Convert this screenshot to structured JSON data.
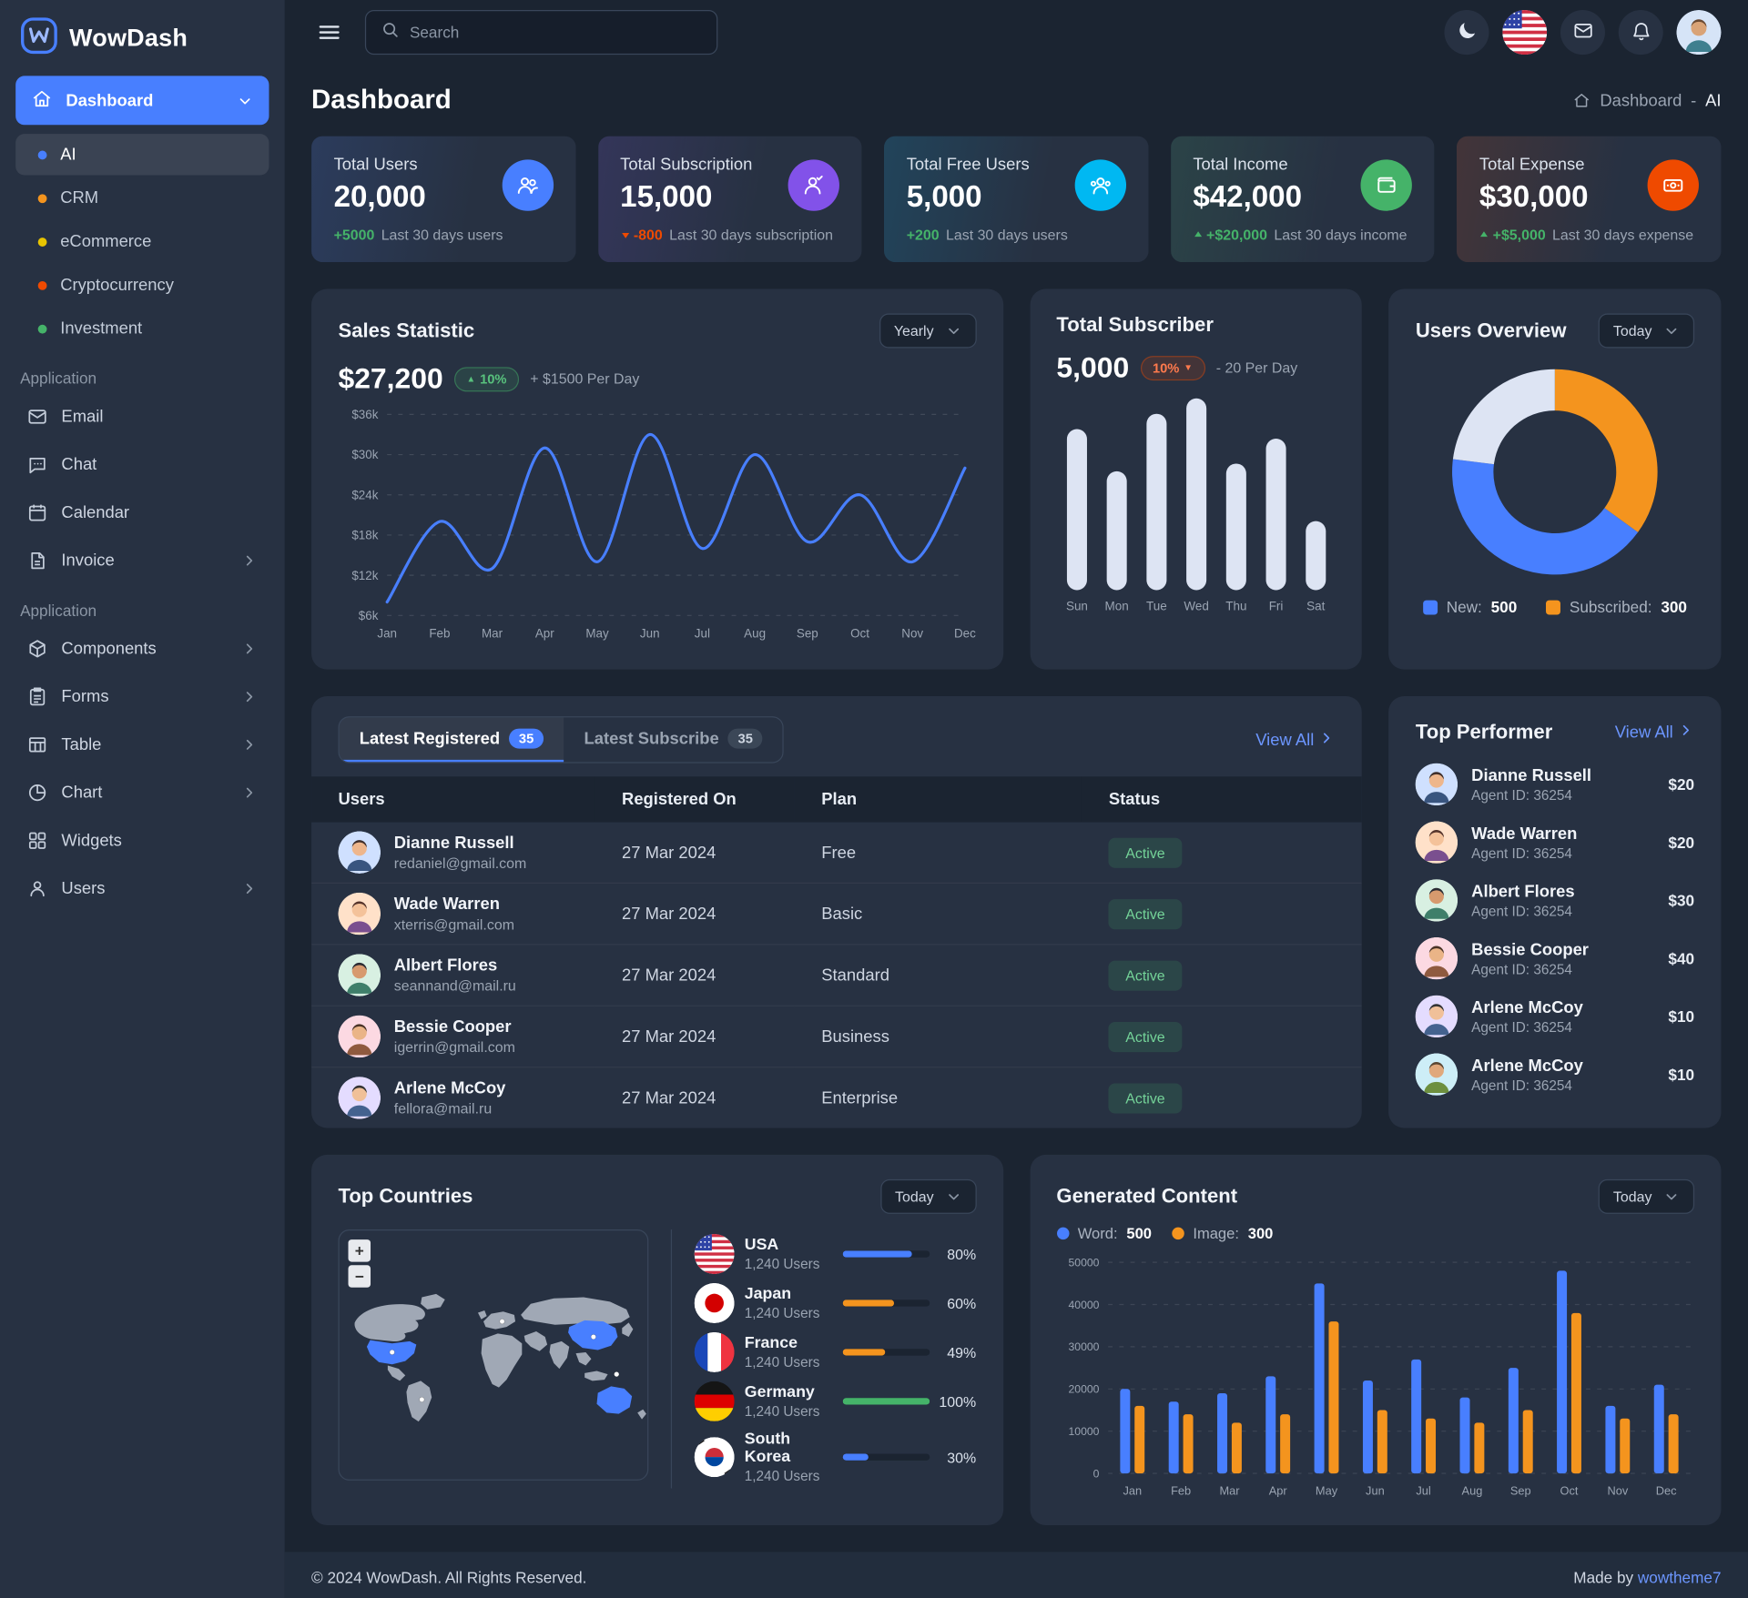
{
  "app": {
    "name": "WowDash",
    "footer_copyright": "© 2024 WowDash. All Rights Reserved.",
    "footer_made_by": "Made by",
    "footer_brand": "wowtheme7"
  },
  "header": {
    "search_placeholder": "Search"
  },
  "sidebar": {
    "dashboard_label": "Dashboard",
    "dashboard_items": [
      {
        "label": "AI",
        "dot": "#487fff",
        "active": true
      },
      {
        "label": "CRM",
        "dot": "#f4941e"
      },
      {
        "label": "eCommerce",
        "dot": "#e8c400"
      },
      {
        "label": "Cryptocurrency",
        "dot": "#ef4a00"
      },
      {
        "label": "Investment",
        "dot": "#45b369"
      }
    ],
    "section1": {
      "title": "Application",
      "items": [
        {
          "label": "Email",
          "icon": "email-icon"
        },
        {
          "label": "Chat",
          "icon": "chat-icon"
        },
        {
          "label": "Calendar",
          "icon": "calendar-icon"
        },
        {
          "label": "Invoice",
          "icon": "invoice-icon",
          "chevron": true
        }
      ]
    },
    "section2": {
      "title": "Application",
      "items": [
        {
          "label": "Components",
          "icon": "components-icon",
          "chevron": true
        },
        {
          "label": "Forms",
          "icon": "forms-icon",
          "chevron": true
        },
        {
          "label": "Table",
          "icon": "table-icon",
          "chevron": true
        },
        {
          "label": "Chart",
          "icon": "chart-icon",
          "chevron": true
        },
        {
          "label": "Widgets",
          "icon": "widgets-icon"
        },
        {
          "label": "Users",
          "icon": "users-icon",
          "chevron": true
        }
      ]
    }
  },
  "page": {
    "title": "Dashboard",
    "breadcrumb_home": "Dashboard",
    "breadcrumb_separator": "-",
    "breadcrumb_current": "AI"
  },
  "stats": [
    {
      "label": "Total Users",
      "value": "20,000",
      "delta": "+5000",
      "delta_color": "#45b369",
      "note": "Last 30 days users",
      "icon": "users-group-icon",
      "icon_bg": "#487fff"
    },
    {
      "label": "Total Subscription",
      "value": "15,000",
      "delta": "-800",
      "delta_color": "#ef4a00",
      "delta_icon": "arrow-down-icon",
      "note": "Last 30 days subscription",
      "icon": "subscription-icon",
      "icon_bg": "#8252e9"
    },
    {
      "label": "Total Free Users",
      "value": "5,000",
      "delta": "+200",
      "delta_color": "#45b369",
      "note": "Last 30 days users",
      "icon": "free-users-icon",
      "icon_bg": "#00b8f2"
    },
    {
      "label": "Total Income",
      "value": "$42,000",
      "delta": "+$20,000",
      "delta_color": "#45b369",
      "delta_icon": "arrow-up-icon",
      "note": "Last 30 days income",
      "icon": "income-icon",
      "icon_bg": "#45b369"
    },
    {
      "label": "Total Expense",
      "value": "$30,000",
      "delta": "+$5,000",
      "delta_color": "#45b369",
      "delta_icon": "arrow-up-icon",
      "note": "Last 30 days expense",
      "icon": "expense-icon",
      "icon_bg": "#ef4a00"
    }
  ],
  "sales": {
    "title": "Sales Statistic",
    "value": "$27,200",
    "badge": "10%",
    "per_day": "+ $1500 Per Day",
    "select_value": "Yearly"
  },
  "subscriber": {
    "title": "Total Subscriber",
    "value": "5,000",
    "badge": "10%",
    "per_day": "- 20 Per Day"
  },
  "users_overview": {
    "title": "Users Overview",
    "select_value": "Today",
    "legend": [
      {
        "label": "New:",
        "value": "500",
        "color": "#487fff"
      },
      {
        "label": "Subscribed:",
        "value": "300",
        "color": "#f4941e"
      }
    ]
  },
  "latest": {
    "tabs": [
      {
        "label": "Latest Registered",
        "badge": "35"
      },
      {
        "label": "Latest Subscribe",
        "badge": "35"
      }
    ],
    "view_all": "View All",
    "columns": [
      "Users",
      "Registered On",
      "Plan",
      "Status"
    ],
    "rows": [
      {
        "name": "Dianne Russell",
        "email": "redaniel@gmail.com",
        "registered": "27 Mar 2024",
        "plan": "Free",
        "status": "Active"
      },
      {
        "name": "Wade Warren",
        "email": "xterris@gmail.com",
        "registered": "27 Mar 2024",
        "plan": "Basic",
        "status": "Active"
      },
      {
        "name": "Albert Flores",
        "email": "seannand@mail.ru",
        "registered": "27 Mar 2024",
        "plan": "Standard",
        "status": "Active"
      },
      {
        "name": "Bessie Cooper",
        "email": "igerrin@gmail.com",
        "registered": "27 Mar 2024",
        "plan": "Business",
        "status": "Active"
      },
      {
        "name": "Arlene McCoy",
        "email": "fellora@mail.ru",
        "registered": "27 Mar 2024",
        "plan": "Enterprise",
        "status": "Active"
      }
    ]
  },
  "top_performer": {
    "title": "Top Performer",
    "view_all": "View All",
    "rows": [
      {
        "name": "Dianne Russell",
        "agent_id": "Agent ID: 36254",
        "amount": "$20"
      },
      {
        "name": "Wade Warren",
        "agent_id": "Agent ID: 36254",
        "amount": "$20"
      },
      {
        "name": "Albert Flores",
        "agent_id": "Agent ID: 36254",
        "amount": "$30"
      },
      {
        "name": "Bessie Cooper",
        "agent_id": "Agent ID: 36254",
        "amount": "$40"
      },
      {
        "name": "Arlene McCoy",
        "agent_id": "Agent ID: 36254",
        "amount": "$10"
      },
      {
        "name": "Arlene McCoy",
        "agent_id": "Agent ID: 36254",
        "amount": "$10"
      }
    ]
  },
  "top_countries": {
    "title": "Top Countries",
    "select_value": "Today",
    "zoom_in": "+",
    "zoom_out": "−",
    "rows": [
      {
        "country": "USA",
        "users": "1,240 Users",
        "percent": 80,
        "percent_text": "80%",
        "color": "#487fff",
        "flag": "usa"
      },
      {
        "country": "Japan",
        "users": "1,240 Users",
        "percent": 60,
        "percent_text": "60%",
        "color": "#f4941e",
        "flag": "japan"
      },
      {
        "country": "France",
        "users": "1,240 Users",
        "percent": 49,
        "percent_text": "49%",
        "color": "#f4941e",
        "flag": "france"
      },
      {
        "country": "Germany",
        "users": "1,240 Users",
        "percent": 100,
        "percent_text": "100%",
        "color": "#45b369",
        "flag": "germany"
      },
      {
        "country": "South Korea",
        "users": "1,240 Users",
        "percent": 30,
        "percent_text": "30%",
        "color": "#487fff",
        "flag": "south_korea"
      }
    ]
  },
  "generated": {
    "title": "Generated Content",
    "select_value": "Today",
    "legend": [
      {
        "label": "Word:",
        "value": "500",
        "color": "#487fff"
      },
      {
        "label": "Image:",
        "value": "300",
        "color": "#f4941e"
      }
    ]
  },
  "chart_data": [
    {
      "name": "sales_statistic",
      "type": "line",
      "title": "Sales Statistic",
      "x": [
        "Jan",
        "Feb",
        "Mar",
        "Apr",
        "May",
        "Jun",
        "Jul",
        "Aug",
        "Sep",
        "Oct",
        "Nov",
        "Dec"
      ],
      "values_thousands": [
        8,
        20,
        13,
        31,
        14,
        33,
        16,
        30,
        17,
        24,
        14,
        28
      ],
      "yticks": [
        6,
        12,
        18,
        24,
        30,
        36
      ],
      "ytick_labels": [
        "$6k",
        "$12k",
        "$18k",
        "$24k",
        "$30k",
        "$36k"
      ],
      "line_color": "#487fff",
      "grid": "dashed"
    },
    {
      "name": "total_subscriber",
      "type": "bar",
      "title": "Total Subscriber",
      "categories": [
        "Sun",
        "Mon",
        "Tue",
        "Wed",
        "Thu",
        "Fri",
        "Sat"
      ],
      "values": [
        84,
        62,
        92,
        100,
        66,
        79,
        36
      ],
      "bar_color": "#dde4f3"
    },
    {
      "name": "users_overview",
      "type": "pie",
      "title": "Users Overview",
      "slices": [
        {
          "label": "Subscribed",
          "value": 35,
          "color": "#f4941e"
        },
        {
          "label": "New",
          "value": 42,
          "color": "#487fff"
        },
        {
          "label": "Other",
          "value": 23,
          "color": "#dde4f3"
        }
      ]
    },
    {
      "name": "generated_content",
      "type": "bar",
      "title": "Generated Content",
      "categories": [
        "Jan",
        "Feb",
        "Mar",
        "Apr",
        "May",
        "Jun",
        "Jul",
        "Aug",
        "Sep",
        "Oct",
        "Nov",
        "Dec"
      ],
      "series": [
        {
          "name": "Word",
          "color": "#487fff",
          "values": [
            20000,
            17000,
            19000,
            23000,
            45000,
            22000,
            27000,
            18000,
            25000,
            48000,
            16000,
            21000
          ]
        },
        {
          "name": "Image",
          "color": "#f4941e",
          "values": [
            16000,
            14000,
            12000,
            14000,
            36000,
            15000,
            13000,
            12000,
            15000,
            38000,
            13000,
            14000
          ]
        }
      ],
      "yticks": [
        0,
        10000,
        20000,
        30000,
        40000,
        50000
      ],
      "ytick_labels": [
        "0",
        "10000",
        "20000",
        "30000",
        "40000",
        "50000"
      ],
      "grid": "dashed"
    }
  ]
}
